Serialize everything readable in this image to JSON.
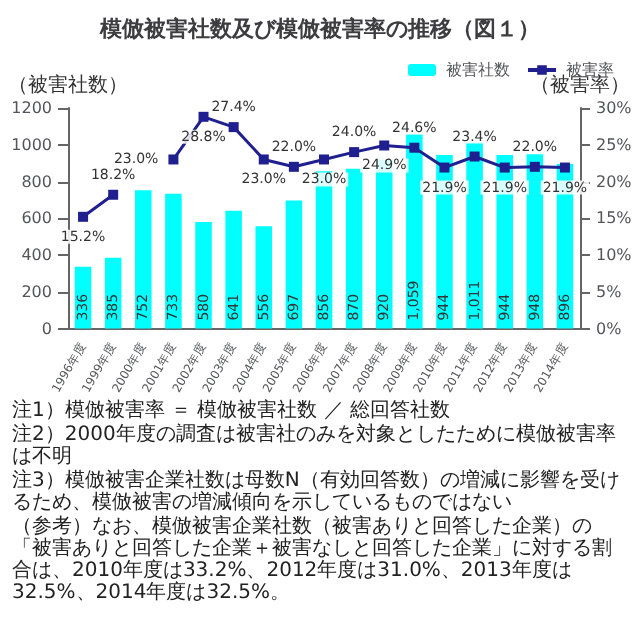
{
  "chart_data": {
    "type": "bar",
    "title": "模倣被害社数及び模倣被害率の推移（図１）",
    "ylabel": "（被害社数）",
    "y2label": "（被害率）",
    "categories": [
      "1996年度",
      "1999年度",
      "2000年度",
      "2001年度",
      "2002年度",
      "2003年度",
      "2004年度",
      "2005年度",
      "2006年度",
      "2007年度",
      "2008年度",
      "2009年度",
      "2010年度",
      "2011年度",
      "2012年度",
      "2013年度",
      "2014年度"
    ],
    "series": [
      {
        "name": "被害社数",
        "color": "#00ffff",
        "values": [
          336,
          385,
          752,
          733,
          580,
          641,
          556,
          697,
          856,
          870,
          920,
          1059,
          944,
          1011,
          944,
          948,
          896
        ],
        "value_labels": [
          "336",
          "385",
          "752",
          "733",
          "580",
          "641",
          "556",
          "697",
          "856",
          "870",
          "920",
          "1,059",
          "944",
          "1,011",
          "944",
          "948",
          "896"
        ]
      },
      {
        "name": "被害率",
        "type": "line",
        "axis": "y2",
        "color": "#1f1f8f",
        "values": [
          15.2,
          18.2,
          null,
          23.0,
          28.8,
          27.4,
          23.0,
          22.0,
          23.0,
          24.0,
          24.9,
          24.6,
          21.9,
          23.4,
          21.9,
          22.0,
          21.9
        ],
        "value_labels": [
          "15.2%",
          "18.2%",
          null,
          "23.0%",
          "28.8%",
          "27.4%",
          "23.0%",
          "22.0%",
          "23.0%",
          "24.0%",
          "24.9%",
          "24.6%",
          "21.9%",
          "23.4%",
          "21.9%",
          "22.0%",
          "21.9%"
        ]
      }
    ],
    "ylim": [
      0,
      1200
    ],
    "yticks": [
      0,
      200,
      400,
      600,
      800,
      1000,
      1200
    ],
    "y2lim": [
      0,
      30
    ],
    "y2ticks": [
      {
        "value": 0,
        "label": "0%"
      },
      {
        "value": 5,
        "label": "5%"
      },
      {
        "value": 10,
        "label": "10%"
      },
      {
        "value": 15,
        "label": "15%"
      },
      {
        "value": 20,
        "label": "20%"
      },
      {
        "value": 25,
        "label": "25%"
      },
      {
        "value": 30,
        "label": "30%"
      }
    ],
    "marker": "square",
    "legend": "top right",
    "grid": false,
    "annotations": [
      "注1）模倣被害率 ＝ 模倣被害社数 ／ 総回答社数",
      "注2）2000年度の調査は被害社のみを対象としたために模倣被害率は不明",
      "注3）模倣被害企業社数は母数N（有効回答数）の増減に影響を受けるため、模倣被害の増減傾向を示しているものではない",
      "（参考）なお、模倣被害企業社数（被害ありと回答した企業）の「被害ありと回答した企業＋被害なしと回答した企業」に対する割合は、2010年度は33.2%、2012年度は31.0%、2013年度は32.5%、2014年度は32.5%。"
    ]
  }
}
